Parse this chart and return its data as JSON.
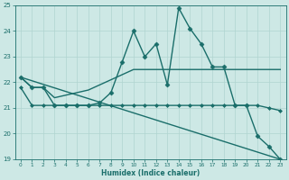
{
  "xlabel": "Humidex (Indice chaleur)",
  "xlim": [
    -0.5,
    23.5
  ],
  "ylim": [
    19,
    25
  ],
  "yticks": [
    19,
    20,
    21,
    22,
    23,
    24,
    25
  ],
  "xticks": [
    0,
    1,
    2,
    3,
    4,
    5,
    6,
    7,
    8,
    9,
    10,
    11,
    12,
    13,
    14,
    15,
    16,
    17,
    18,
    19,
    20,
    21,
    22,
    23
  ],
  "bg_color": "#cde8e5",
  "line_color": "#1a6e6a",
  "grid_color": "#b0d4d0",
  "lines": [
    {
      "x": [
        0,
        1,
        2,
        3,
        4,
        5,
        6,
        7,
        8,
        9,
        10,
        11,
        12,
        13,
        14,
        15,
        16,
        17,
        18,
        19,
        20,
        21,
        22,
        23
      ],
      "y": [
        22.2,
        21.8,
        21.8,
        21.1,
        21.1,
        21.1,
        21.1,
        21.2,
        21.6,
        22.8,
        24.0,
        23.0,
        23.5,
        21.9,
        24.9,
        24.1,
        23.5,
        22.6,
        22.6,
        21.1,
        21.1,
        19.9,
        19.5,
        19.0
      ],
      "marker": "D",
      "markersize": 2.5,
      "linewidth": 1.0,
      "zorder": 4
    },
    {
      "x": [
        0,
        1,
        2,
        3,
        4,
        5,
        6,
        7,
        8,
        9,
        10,
        11,
        12,
        13,
        14,
        15,
        16,
        17,
        18,
        19,
        20,
        21,
        22,
        23
      ],
      "y": [
        22.2,
        21.8,
        21.8,
        21.4,
        21.5,
        21.6,
        21.7,
        21.9,
        22.1,
        22.3,
        22.5,
        22.5,
        22.5,
        22.5,
        22.5,
        22.5,
        22.5,
        22.5,
        22.5,
        22.5,
        22.5,
        22.5,
        22.5,
        22.5
      ],
      "marker": null,
      "markersize": 0,
      "linewidth": 1.0,
      "zorder": 3
    },
    {
      "x": [
        0,
        1,
        2,
        3,
        4,
        5,
        6,
        7,
        8,
        9,
        10,
        11,
        12,
        13,
        14,
        15,
        16,
        17,
        18,
        19,
        20,
        21,
        22,
        23
      ],
      "y": [
        21.8,
        21.1,
        21.1,
        21.1,
        21.1,
        21.1,
        21.1,
        21.1,
        21.1,
        21.1,
        21.1,
        21.1,
        21.1,
        21.1,
        21.1,
        21.1,
        21.1,
        21.1,
        21.1,
        21.1,
        21.1,
        21.1,
        21.0,
        20.9
      ],
      "marker": "D",
      "markersize": 2.0,
      "linewidth": 1.0,
      "zorder": 3
    },
    {
      "x": [
        0,
        23
      ],
      "y": [
        22.2,
        19.0
      ],
      "marker": null,
      "markersize": 0,
      "linewidth": 1.0,
      "zorder": 2
    }
  ]
}
